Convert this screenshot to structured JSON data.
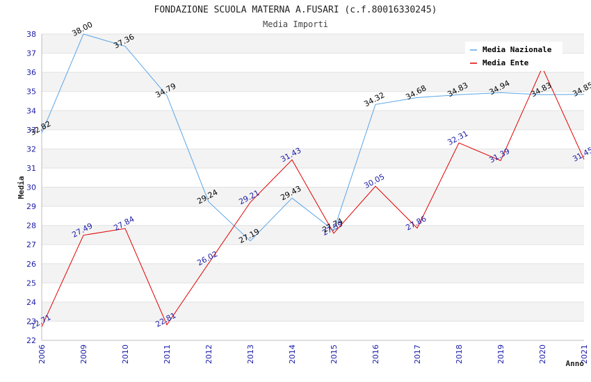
{
  "chart_data": {
    "type": "line",
    "title": "FONDAZIONE SCUOLA MATERNA A.FUSARI (c.f.80016330245)",
    "subtitle": "Media Importi",
    "xlabel": "Anno",
    "ylabel": "Media",
    "categories": [
      "2006",
      "2009",
      "2010",
      "2011",
      "2012",
      "2013",
      "2014",
      "2015",
      "2016",
      "2017",
      "2018",
      "2019",
      "2020",
      "2021"
    ],
    "ylim": [
      22,
      38
    ],
    "yticks": [
      22,
      23,
      24,
      25,
      26,
      27,
      28,
      29,
      30,
      31,
      32,
      33,
      34,
      35,
      36,
      37,
      38
    ],
    "grid": "horizontal-bands",
    "legend_position": "top-right",
    "series": [
      {
        "name": "Media Nazionale",
        "color": "#5aa5e6",
        "label_color": "#000000",
        "values": [
          32.82,
          38.0,
          37.36,
          34.79,
          29.24,
          27.19,
          29.43,
          27.74,
          34.32,
          34.68,
          34.83,
          34.94,
          34.83,
          34.85
        ],
        "labels": [
          "32.82",
          "38.00",
          "37.36",
          "34.79",
          "29.24",
          "27.19",
          "29.43",
          "27.74",
          "34.32",
          "34.68",
          "34.83",
          "34.94",
          "34.83",
          "34.85"
        ]
      },
      {
        "name": "Media Ente",
        "color": "#e00000",
        "label_color": "#1a1aa6",
        "values": [
          22.71,
          27.49,
          27.84,
          22.81,
          26.02,
          29.21,
          31.43,
          27.59,
          30.05,
          27.86,
          32.31,
          31.39,
          36.25,
          31.45
        ],
        "labels": [
          "22.71",
          "27.49",
          "27.84",
          "22.81",
          "26.02",
          "29.21",
          "31.43",
          "27.59",
          "30.05",
          "27.86",
          "32.31",
          "31.39",
          "",
          "31.45"
        ]
      }
    ]
  }
}
